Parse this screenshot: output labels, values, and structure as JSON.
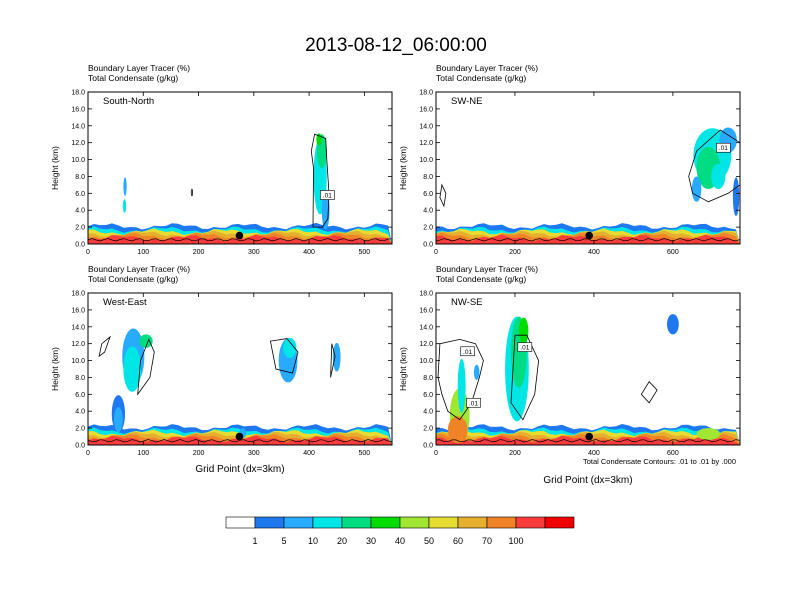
{
  "main_title": "2013-08-12_06:00:00",
  "panel_header": {
    "line1": "Boundary Layer Tracer",
    "line1_unit": "(%)",
    "line2": "Total Condensate",
    "line2_unit": "(g/kg)"
  },
  "y_axis_label": "Height (km)",
  "x_axis_label": "Grid Point (dx=3km)",
  "contour_note": "Total Condensate Contours: .01 to .01 by .000",
  "contour_label": ".01",
  "colorbar": {
    "colors": [
      "#ffffff",
      "#1e78f0",
      "#28aaff",
      "#00e6e6",
      "#00dc82",
      "#00dc00",
      "#a0e632",
      "#e6dc32",
      "#e6af2d",
      "#f08228",
      "#fa3c3c",
      "#f00000"
    ],
    "labels": [
      "1",
      "5",
      "10",
      "20",
      "30",
      "40",
      "50",
      "60",
      "70",
      "100"
    ]
  },
  "chart_data": [
    {
      "type": "heatmap",
      "name": "South-North",
      "title": "South-North",
      "xlim": [
        0,
        550
      ],
      "ylim": [
        0,
        18
      ],
      "xticks": [
        0,
        100,
        200,
        300,
        400,
        500
      ],
      "yticks": [
        0,
        2,
        4,
        6,
        8,
        10,
        12,
        14,
        16,
        18
      ],
      "marker": {
        "x": 274,
        "y": 1.0
      },
      "tracer_features": [
        {
          "x": [
            400,
            440
          ],
          "y": [
            0.5,
            13.0
          ],
          "max_pct": 30,
          "desc": "deep convective column"
        },
        {
          "x": [
            60,
            75
          ],
          "y": [
            4.0,
            7.5
          ],
          "max_pct": 10
        },
        {
          "x": [
            0,
            550
          ],
          "y": [
            0,
            1.8
          ],
          "max_pct": 100,
          "desc": "boundary layer"
        }
      ],
      "contour_labels": [
        {
          "x": 433,
          "y": 5.8,
          "text": ".01"
        }
      ]
    },
    {
      "type": "heatmap",
      "name": "SW-NE",
      "title": "SW-NE",
      "xlim": [
        0,
        770
      ],
      "ylim": [
        0,
        18
      ],
      "xticks": [
        0,
        200,
        400,
        600
      ],
      "yticks": [
        0,
        2,
        4,
        6,
        8,
        10,
        12,
        14,
        16,
        18
      ],
      "marker": {
        "x": 388,
        "y": 1.0
      },
      "tracer_features": [
        {
          "x": [
            620,
            770
          ],
          "y": [
            7.0,
            14.0
          ],
          "max_pct": 30,
          "desc": "elevated anvil"
        },
        {
          "x": [
            0,
            770
          ],
          "y": [
            0,
            2.2
          ],
          "max_pct": 100,
          "desc": "boundary layer"
        }
      ],
      "contour_labels": [
        {
          "x": 728,
          "y": 11.4,
          "text": ".01"
        }
      ]
    },
    {
      "type": "heatmap",
      "name": "West-East",
      "title": "West-East",
      "xlim": [
        0,
        550
      ],
      "ylim": [
        0,
        18
      ],
      "xticks": [
        0,
        100,
        200,
        300,
        400,
        500
      ],
      "yticks": [
        0,
        2,
        4,
        6,
        8,
        10,
        12,
        14,
        16,
        18
      ],
      "marker": {
        "x": 274,
        "y": 1.0
      },
      "tracer_features": [
        {
          "x": [
            40,
            120
          ],
          "y": [
            2.0,
            13.0
          ],
          "max_pct": 30
        },
        {
          "x": [
            340,
            380
          ],
          "y": [
            7.0,
            12.5
          ],
          "max_pct": 20
        },
        {
          "x": [
            0,
            550
          ],
          "y": [
            0,
            1.8
          ],
          "max_pct": 100,
          "desc": "boundary layer"
        }
      ],
      "contour_labels": []
    },
    {
      "type": "heatmap",
      "name": "NW-SE",
      "title": "NW-SE",
      "xlim": [
        0,
        770
      ],
      "ylim": [
        0,
        18
      ],
      "xticks": [
        0,
        200,
        400,
        600
      ],
      "yticks": [
        0,
        2,
        4,
        6,
        8,
        10,
        12,
        14,
        16,
        18
      ],
      "marker": {
        "x": 388,
        "y": 1.0
      },
      "tracer_features": [
        {
          "x": [
            170,
            240
          ],
          "y": [
            3.0,
            15.5
          ],
          "max_pct": 40,
          "desc": "deep convective column"
        },
        {
          "x": [
            30,
            80
          ],
          "y": [
            0.5,
            10.0
          ],
          "max_pct": 100
        },
        {
          "x": [
            0,
            770
          ],
          "y": [
            0,
            2.0
          ],
          "max_pct": 100,
          "desc": "boundary layer"
        }
      ],
      "contour_labels": [
        {
          "x": 80,
          "y": 11.1,
          "text": ".01"
        },
        {
          "x": 95,
          "y": 5.0,
          "text": ".01"
        },
        {
          "x": 225,
          "y": 11.6,
          "text": ".01"
        }
      ]
    }
  ]
}
